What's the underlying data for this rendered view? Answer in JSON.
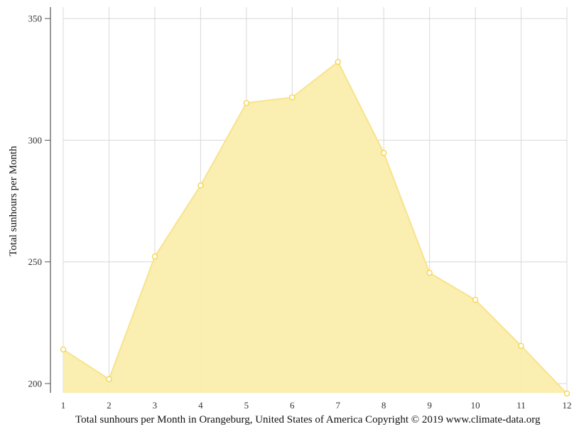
{
  "chart_data": {
    "type": "area",
    "title": "Total sunhours per Month in Orangeburg, United States of America Copyright © 2019 www.climate-data.org",
    "xlabel": "",
    "ylabel": "Total sunhours per Month",
    "categories": [
      "1",
      "2",
      "3",
      "4",
      "5",
      "6",
      "7",
      "8",
      "9",
      "10",
      "11",
      "12"
    ],
    "values": [
      214.0,
      201.8,
      252.2,
      281.4,
      315.3,
      317.6,
      332.2,
      294.8,
      245.5,
      234.4,
      215.5,
      195.9
    ],
    "series": [
      {
        "name": "Total sunhours per Month",
        "values": [
          214.0,
          201.8,
          252.2,
          281.4,
          315.3,
          317.6,
          332.2,
          294.8,
          245.5,
          234.4,
          215.5,
          195.9
        ]
      }
    ],
    "yticks": [
      200,
      250,
      300,
      350
    ],
    "ylim": [
      196.2,
      354.7
    ],
    "grid": true,
    "legend": "none",
    "colors": {
      "fill": "#faedac",
      "line": "#f8e38f",
      "marker_stroke": "#f4d443",
      "marker_fill": "#ffffff",
      "grid": "#d8d8d8",
      "axis": "#777777"
    }
  },
  "caption": "Total sunhours per Month in Orangeburg, United States of America Copyright © 2019 www.climate-data.org"
}
